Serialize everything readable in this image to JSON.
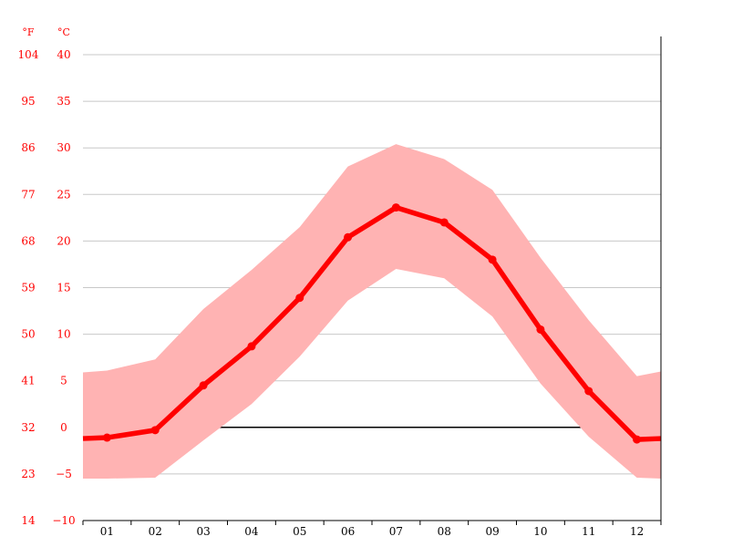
{
  "chart_data": {
    "type": "line",
    "categories": [
      "01",
      "02",
      "03",
      "04",
      "05",
      "06",
      "07",
      "08",
      "09",
      "10",
      "11",
      "12"
    ],
    "y_unit_left": "°F",
    "y_unit_right": "°C",
    "y_ticks_f": [
      "104",
      "95",
      "86",
      "77",
      "68",
      "59",
      "50",
      "41",
      "32",
      "23",
      "14"
    ],
    "y_ticks_c": [
      "40",
      "35",
      "30",
      "25",
      "20",
      "15",
      "10",
      "5",
      "0",
      "−5",
      "−10"
    ],
    "ylim": [
      -10,
      40
    ],
    "grid": true,
    "series": [
      {
        "values": [
          -1.1,
          -0.3,
          4.5,
          8.7,
          13.9,
          20.4,
          23.6,
          22.0,
          18.0,
          10.5,
          3.9,
          -1.3
        ]
      }
    ],
    "range_upper": [
      6.1,
      7.3,
      12.7,
      16.9,
      21.5,
      28.0,
      30.4,
      28.8,
      25.5,
      18.2,
      11.5,
      5.5
    ],
    "range_lower": [
      -5.5,
      -5.4,
      -1.4,
      2.5,
      7.6,
      13.6,
      17.0,
      16.0,
      11.9,
      4.7,
      -1.0,
      -5.4
    ],
    "edge_values": {
      "mean": [
        -1.2,
        -1.2
      ],
      "upper": [
        5.9,
        6.0
      ],
      "lower": [
        -5.5,
        -5.5
      ]
    },
    "colors": {
      "line": "#ff0000",
      "band": "#ffb3b3",
      "tick_labels": "#ff0000",
      "grid": "#c8c8c8",
      "zero_line": "#000000"
    }
  }
}
